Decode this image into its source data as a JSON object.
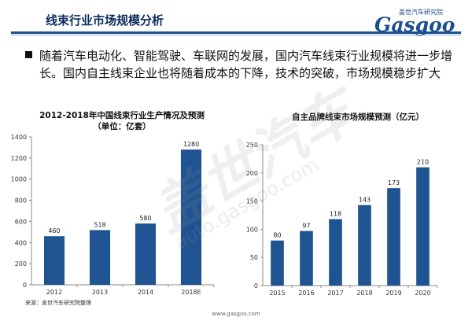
{
  "header": {
    "title": "线束行业市场规模分析",
    "logo_tag": "盖世汽车研究院",
    "logo_text": "Gasgoo"
  },
  "bullet": {
    "text": "随着汽车电动化、智能驾驶、车联网的发展，国内汽车线束行业规模将进一步增长。国内自主线束企业也将随着成本的下降，技术的突破，市场规模稳步扩大"
  },
  "watermark": {
    "brand": "盖世汽车",
    "url": "auto.gasgoo.com"
  },
  "chart_data": [
    {
      "type": "bar",
      "title": "2012-2018年中国线束行业生产情况及预测",
      "subtitle": "（单位：亿套）",
      "categories": [
        "2012",
        "2013",
        "2014",
        "2018E"
      ],
      "values": [
        460,
        518,
        580,
        1280
      ],
      "ylim": [
        0,
        1400
      ],
      "yticks": [
        0,
        200,
        400,
        600,
        800,
        1000,
        1200,
        1400
      ],
      "grid": false,
      "color": "#1f5391"
    },
    {
      "type": "bar",
      "title": "自主品牌线束市场规模预测（亿元）",
      "categories": [
        "2015",
        "2016",
        "2017",
        "2018",
        "2019",
        "2020"
      ],
      "values": [
        80,
        97,
        118,
        143,
        173,
        210
      ],
      "ylim": [
        0,
        250
      ],
      "yticks": [
        0,
        50,
        100,
        150,
        200,
        250
      ],
      "grid": false,
      "color": "#1f5391"
    }
  ],
  "source": "来源：盖世汽车研究院整理",
  "footer_url": "www.gasgoo.com"
}
